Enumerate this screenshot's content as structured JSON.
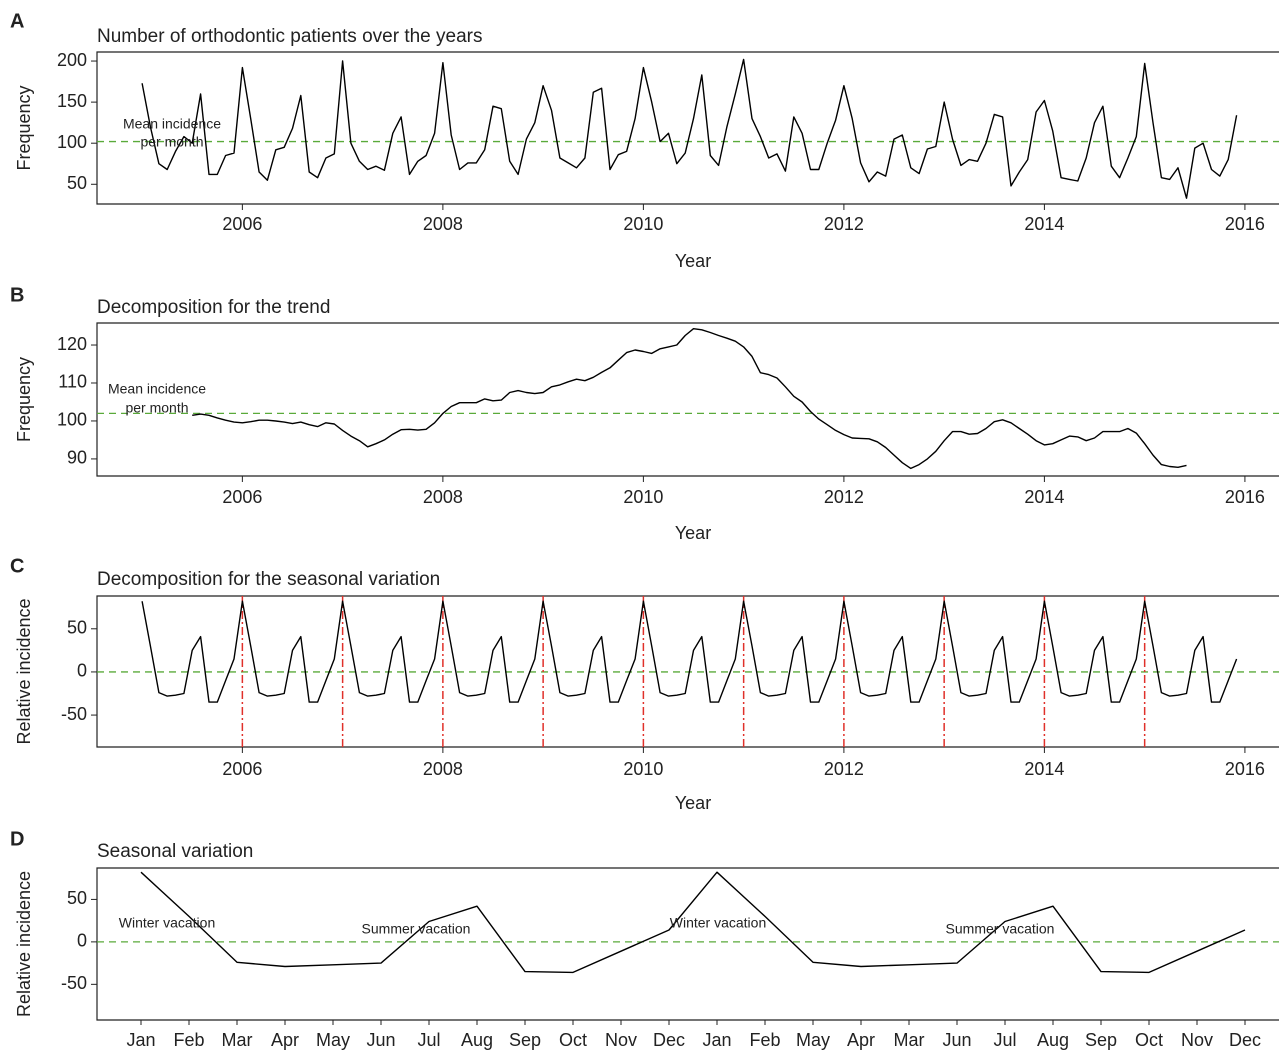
{
  "chart_data": [
    {
      "type": "line",
      "panel_label": "A",
      "title": "Number of orthodontic patients over the years",
      "xlabel": "Year",
      "ylabel": "Frequency",
      "xlim": [
        2004.55,
        2016.34
      ],
      "xticks": [
        2006,
        2008,
        2010,
        2012,
        2014,
        2016
      ],
      "ylim": [
        26,
        211
      ],
      "yticks": [
        50,
        100,
        150,
        200
      ],
      "hline": 102,
      "hline_color": "#5aaa3a",
      "annotation": [
        "Mean incidence",
        "per month"
      ],
      "x": [
        2005,
        2005.083,
        2005.167,
        2005.25,
        2005.333,
        2005.417,
        2005.5,
        2005.583,
        2005.667,
        2005.75,
        2005.833,
        2005.917,
        2006,
        2006.083,
        2006.167,
        2006.25,
        2006.333,
        2006.417,
        2006.5,
        2006.583,
        2006.667,
        2006.75,
        2006.833,
        2006.917,
        2007,
        2007.083,
        2007.167,
        2007.25,
        2007.333,
        2007.417,
        2007.5,
        2007.583,
        2007.667,
        2007.75,
        2007.833,
        2007.917,
        2008,
        2008.083,
        2008.167,
        2008.25,
        2008.333,
        2008.417,
        2008.5,
        2008.583,
        2008.667,
        2008.75,
        2008.833,
        2008.917,
        2009,
        2009.083,
        2009.167,
        2009.25,
        2009.333,
        2009.417,
        2009.5,
        2009.583,
        2009.667,
        2009.75,
        2009.833,
        2009.917,
        2010,
        2010.083,
        2010.167,
        2010.25,
        2010.333,
        2010.417,
        2010.5,
        2010.583,
        2010.667,
        2010.75,
        2010.833,
        2010.917,
        2011,
        2011.083,
        2011.167,
        2011.25,
        2011.333,
        2011.417,
        2011.5,
        2011.583,
        2011.667,
        2011.75,
        2011.833,
        2011.917,
        2012,
        2012.083,
        2012.167,
        2012.25,
        2012.333,
        2012.417,
        2012.5,
        2012.583,
        2012.667,
        2012.75,
        2012.833,
        2012.917,
        2013,
        2013.083,
        2013.167,
        2013.25,
        2013.333,
        2013.417,
        2013.5,
        2013.583,
        2013.667,
        2013.75,
        2013.833,
        2013.917,
        2014,
        2014.083,
        2014.167,
        2014.25,
        2014.333,
        2014.417,
        2014.5,
        2014.583,
        2014.667,
        2014.75,
        2014.833,
        2014.917,
        2015,
        2015.083,
        2015.167,
        2015.25,
        2015.333,
        2015.417,
        2015.5,
        2015.583,
        2015.667,
        2015.75,
        2015.833,
        2015.917
      ],
      "series": [
        {
          "color": "#000000",
          "values": [
            173,
            120,
            75,
            68,
            90,
            108,
            100,
            160,
            62,
            62,
            85,
            88,
            192,
            130,
            65,
            55,
            92,
            95,
            118,
            158,
            65,
            58,
            82,
            87,
            200,
            100,
            78,
            68,
            72,
            67,
            112,
            132,
            62,
            78,
            85,
            112,
            198,
            110,
            68,
            76,
            76,
            92,
            145,
            142,
            78,
            62,
            105,
            125,
            170,
            140,
            82,
            76,
            70,
            82,
            162,
            167,
            68,
            86,
            90,
            130,
            192,
            150,
            102,
            112,
            75,
            88,
            130,
            183,
            85,
            73,
            120,
            160,
            202,
            130,
            108,
            82,
            87,
            66,
            132,
            112,
            68,
            68,
            100,
            128,
            170,
            130,
            76,
            53,
            65,
            60,
            105,
            110,
            70,
            63,
            93,
            96,
            150,
            105,
            73,
            80,
            78,
            100,
            135,
            132,
            48,
            65,
            80,
            138,
            152,
            115,
            58,
            56,
            54,
            82,
            125,
            145,
            72,
            58,
            82,
            108,
            197,
            125,
            58,
            56,
            70,
            33,
            94,
            100,
            68,
            60,
            80,
            134
          ]
        }
      ]
    },
    {
      "type": "line",
      "panel_label": "B",
      "title": "Decomposition for the trend",
      "xlabel": "Year",
      "ylabel": "Frequency",
      "xlim": [
        2004.55,
        2016.34
      ],
      "xticks": [
        2006,
        2008,
        2010,
        2012,
        2014,
        2016
      ],
      "ylim": [
        85.5,
        125.8
      ],
      "yticks": [
        90,
        100,
        110,
        120
      ],
      "hline": 102,
      "hline_color": "#5aaa3a",
      "annotation": [
        "Mean incidence",
        "per month"
      ],
      "x": [
        2005.5,
        2005.583,
        2005.667,
        2005.75,
        2005.833,
        2005.917,
        2006,
        2006.083,
        2006.167,
        2006.25,
        2006.333,
        2006.417,
        2006.5,
        2006.583,
        2006.667,
        2006.75,
        2006.833,
        2006.917,
        2007,
        2007.083,
        2007.167,
        2007.25,
        2007.333,
        2007.417,
        2007.5,
        2007.583,
        2007.667,
        2007.75,
        2007.833,
        2007.917,
        2008,
        2008.083,
        2008.167,
        2008.25,
        2008.333,
        2008.417,
        2008.5,
        2008.583,
        2008.667,
        2008.75,
        2008.833,
        2008.917,
        2009,
        2009.083,
        2009.167,
        2009.25,
        2009.333,
        2009.417,
        2009.5,
        2009.583,
        2009.667,
        2009.75,
        2009.833,
        2009.917,
        2010,
        2010.083,
        2010.167,
        2010.25,
        2010.333,
        2010.417,
        2010.5,
        2010.583,
        2010.667,
        2010.75,
        2010.833,
        2010.917,
        2011,
        2011.083,
        2011.167,
        2011.25,
        2011.333,
        2011.417,
        2011.5,
        2011.583,
        2011.667,
        2011.75,
        2011.833,
        2011.917,
        2012,
        2012.083,
        2012.167,
        2012.25,
        2012.333,
        2012.417,
        2012.5,
        2012.583,
        2012.667,
        2012.75,
        2012.833,
        2012.917,
        2013,
        2013.083,
        2013.167,
        2013.25,
        2013.333,
        2013.417,
        2013.5,
        2013.583,
        2013.667,
        2013.75,
        2013.833,
        2013.917,
        2014,
        2014.083,
        2014.167,
        2014.25,
        2014.333,
        2014.417,
        2014.5,
        2014.583,
        2014.667,
        2014.75,
        2014.833,
        2014.917,
        2015,
        2015.083,
        2015.167,
        2015.25,
        2015.333,
        2015.417
      ],
      "series": [
        {
          "color": "#000000",
          "values": [
            101.5,
            101.8,
            101.5,
            100.8,
            100.2,
            99.7,
            99.5,
            99.8,
            100.2,
            100.2,
            100,
            99.7,
            99.3,
            99.7,
            99,
            98.5,
            99.5,
            99.2,
            97.5,
            96,
            94.8,
            93.2,
            94,
            95,
            96.5,
            97.7,
            97.8,
            97.6,
            97.8,
            99.5,
            102,
            103.8,
            104.8,
            104.8,
            104.8,
            105.8,
            105.3,
            105.5,
            107.5,
            108,
            107.5,
            107.2,
            107.5,
            109,
            109.5,
            110.3,
            111,
            110.6,
            111.5,
            112.8,
            114,
            116,
            118,
            118.7,
            118.3,
            117.8,
            119,
            119.5,
            120,
            122.5,
            124.3,
            124,
            123.3,
            122.5,
            121.8,
            121,
            119.5,
            117,
            112.7,
            112.2,
            111.3,
            109,
            106.5,
            105,
            102.5,
            100.5,
            99,
            97.5,
            96.4,
            95.5,
            95.4,
            95.3,
            94.5,
            93,
            91,
            89,
            87.5,
            88.5,
            90,
            92,
            94.8,
            97.2,
            97.2,
            96.5,
            96.7,
            98,
            99.8,
            100.3,
            99.5,
            98,
            96.5,
            94.8,
            93.7,
            94,
            95,
            96,
            95.8,
            94.8,
            95.5,
            97.2,
            97.2,
            97.2,
            98,
            96.8,
            94,
            91,
            88.5,
            88,
            87.8,
            88.3
          ]
        }
      ]
    },
    {
      "type": "line",
      "panel_label": "C",
      "title": "Decomposition for the seasonal variation",
      "xlabel": "Year",
      "ylabel": "Relative incidence",
      "xlim": [
        2004.55,
        2016.34
      ],
      "xticks": [
        2006,
        2008,
        2010,
        2012,
        2014,
        2016
      ],
      "ylim": [
        -87,
        88
      ],
      "yticks": [
        -50,
        0,
        50
      ],
      "hline": 0,
      "hline_color": "#5aaa3a",
      "vlines": [
        2006,
        2007,
        2008,
        2009,
        2010,
        2011,
        2012,
        2013,
        2014,
        2015
      ],
      "vline_color": "#e0302a",
      "x": [
        2005,
        2005.083,
        2005.167,
        2005.25,
        2005.333,
        2005.417,
        2005.5,
        2005.583,
        2005.667,
        2005.75,
        2005.833,
        2005.917,
        2006,
        2006.083,
        2006.167,
        2006.25,
        2006.333,
        2006.417,
        2006.5,
        2006.583,
        2006.667,
        2006.75,
        2006.833,
        2006.917,
        2007,
        2007.083,
        2007.167,
        2007.25,
        2007.333,
        2007.417,
        2007.5,
        2007.583,
        2007.667,
        2007.75,
        2007.833,
        2007.917,
        2008,
        2008.083,
        2008.167,
        2008.25,
        2008.333,
        2008.417,
        2008.5,
        2008.583,
        2008.667,
        2008.75,
        2008.833,
        2008.917,
        2009,
        2009.083,
        2009.167,
        2009.25,
        2009.333,
        2009.417,
        2009.5,
        2009.583,
        2009.667,
        2009.75,
        2009.833,
        2009.917,
        2010,
        2010.083,
        2010.167,
        2010.25,
        2010.333,
        2010.417,
        2010.5,
        2010.583,
        2010.667,
        2010.75,
        2010.833,
        2010.917,
        2011,
        2011.083,
        2011.167,
        2011.25,
        2011.333,
        2011.417,
        2011.5,
        2011.583,
        2011.667,
        2011.75,
        2011.833,
        2011.917,
        2012,
        2012.083,
        2012.167,
        2012.25,
        2012.333,
        2012.417,
        2012.5,
        2012.583,
        2012.667,
        2012.75,
        2012.833,
        2012.917,
        2013,
        2013.083,
        2013.167,
        2013.25,
        2013.333,
        2013.417,
        2013.5,
        2013.583,
        2013.667,
        2013.75,
        2013.833,
        2013.917,
        2014,
        2014.083,
        2014.167,
        2014.25,
        2014.333,
        2014.417,
        2014.5,
        2014.583,
        2014.667,
        2014.75,
        2014.833,
        2014.917,
        2015,
        2015.083,
        2015.167,
        2015.25,
        2015.333,
        2015.417,
        2015.5,
        2015.583,
        2015.667,
        2015.75,
        2015.833,
        2015.917
      ],
      "series": [
        {
          "color": "#000000",
          "values": [
            82,
            30,
            -24,
            -28,
            -27,
            -25,
            25,
            41,
            -35,
            -35,
            -10,
            15,
            82,
            30,
            -24,
            -28,
            -27,
            -25,
            25,
            41,
            -35,
            -35,
            -10,
            15,
            82,
            30,
            -24,
            -28,
            -27,
            -25,
            25,
            41,
            -35,
            -35,
            -10,
            15,
            82,
            30,
            -24,
            -28,
            -27,
            -25,
            25,
            41,
            -35,
            -35,
            -10,
            15,
            82,
            30,
            -24,
            -28,
            -27,
            -25,
            25,
            41,
            -35,
            -35,
            -10,
            15,
            82,
            30,
            -24,
            -28,
            -27,
            -25,
            25,
            41,
            -35,
            -35,
            -10,
            15,
            82,
            30,
            -24,
            -28,
            -27,
            -25,
            25,
            41,
            -35,
            -35,
            -10,
            15,
            82,
            30,
            -24,
            -28,
            -27,
            -25,
            25,
            41,
            -35,
            -35,
            -10,
            15,
            82,
            30,
            -24,
            -28,
            -27,
            -25,
            25,
            41,
            -35,
            -35,
            -10,
            15,
            82,
            30,
            -24,
            -28,
            -27,
            -25,
            25,
            41,
            -35,
            -35,
            -10,
            15,
            82,
            30,
            -24,
            -28,
            -27,
            -25,
            25,
            41,
            -35,
            -35,
            -10,
            15
          ]
        }
      ]
    },
    {
      "type": "line",
      "panel_label": "D",
      "title": "Seasonal variation",
      "ylabel": "Relative incidence",
      "ylim": [
        -92,
        87
      ],
      "yticks": [
        -50,
        0,
        50
      ],
      "hline": 0,
      "hline_color": "#5aaa3a",
      "annotation": [
        "Winter vacation",
        "Summer vacation",
        "Winter vacation",
        "Summer vacation"
      ],
      "categories": [
        "Jan",
        "Feb",
        "Mar",
        "Apr",
        "May",
        "Jun",
        "Jul",
        "Aug",
        "Sep",
        "Oct",
        "Nov",
        "Dec",
        "Jan",
        "Feb",
        "May",
        "Apr",
        "Mar",
        "Jun",
        "Jul",
        "Aug",
        "Sep",
        "Oct",
        "Nov",
        "Dec"
      ],
      "series": [
        {
          "color": "#000000",
          "values": [
            82,
            30,
            -24,
            -29,
            -27,
            -25,
            24,
            42,
            -35,
            -36,
            -11,
            14,
            82,
            30,
            -24,
            -29,
            -27,
            -25,
            24,
            42,
            -35,
            -36,
            -11,
            14
          ]
        }
      ]
    }
  ]
}
